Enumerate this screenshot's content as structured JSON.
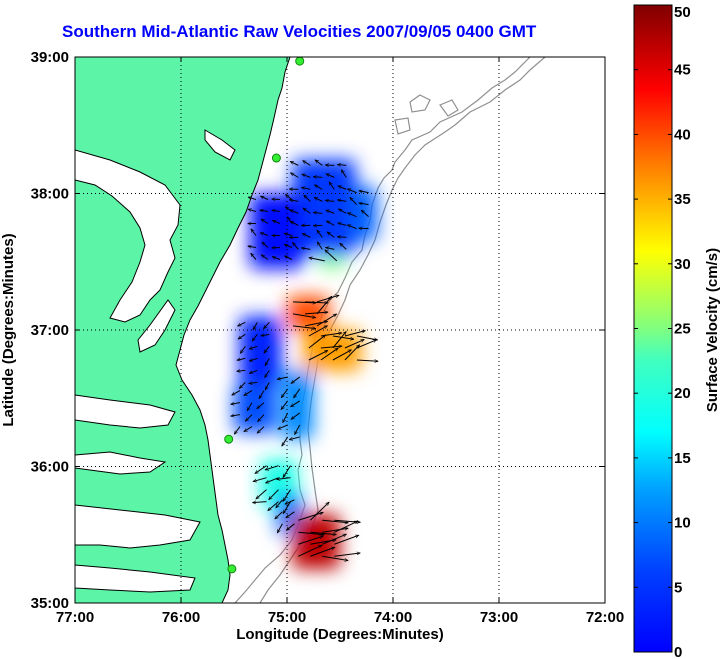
{
  "title": "Southern Mid-Atlantic Raw Velocities 2007/09/05 0400 GMT",
  "x_axis": {
    "label": "Longitude (Degrees:Minutes)",
    "ticks": [
      "77:00",
      "76:00",
      "75:00",
      "74:00",
      "73:00",
      "72:00"
    ]
  },
  "y_axis": {
    "label": "Latitude (Degrees:Minutes)",
    "ticks": [
      "39:00",
      "38:00",
      "37:00",
      "36:00",
      "35:00"
    ]
  },
  "colorbar": {
    "label": "Surface Velocity (cm/s)",
    "ticks": [
      "50",
      "45",
      "40",
      "35",
      "30",
      "25",
      "20",
      "15",
      "10",
      "5",
      "0"
    ],
    "min": 0,
    "max": 50
  },
  "colors": {
    "title": "#0000ff",
    "land": "#5cf5a8",
    "coast": "#000000",
    "bathymetry": "#909090",
    "station": "#33ee33",
    "grid": "#000000"
  },
  "chart_data": {
    "type": "heatmap",
    "title": "Southern Mid-Atlantic Raw Velocities 2007/09/05 0400 GMT",
    "xlabel": "Longitude (Degrees:Minutes)",
    "ylabel": "Latitude (Degrees:Minutes)",
    "xlim": [
      -77,
      -72
    ],
    "ylim": [
      35,
      39
    ],
    "grid": true,
    "colorbar_range": [
      0,
      50
    ],
    "regions": [
      {
        "lon": [
          -74.95,
          -74.35
        ],
        "lat": [
          37.55,
          38.25
        ],
        "speed": 9
      },
      {
        "lon": [
          -75.35,
          -74.85
        ],
        "lat": [
          37.45,
          38.0
        ],
        "speed": 7
      },
      {
        "lon": [
          -74.4,
          -74.15
        ],
        "lat": [
          37.65,
          38.05
        ],
        "speed": 11
      },
      {
        "lon": [
          -74.7,
          -74.45
        ],
        "lat": [
          37.45,
          37.55
        ],
        "speed": 25
      },
      {
        "lon": [
          -75.0,
          -74.6
        ],
        "lat": [
          37.0,
          37.25
        ],
        "speed": 40
      },
      {
        "lon": [
          -74.85,
          -74.3
        ],
        "lat": [
          36.7,
          37.0
        ],
        "speed": 36
      },
      {
        "lon": [
          -75.45,
          -75.05
        ],
        "lat": [
          36.6,
          37.1
        ],
        "speed": 8
      },
      {
        "lon": [
          -75.5,
          -75.1
        ],
        "lat": [
          36.25,
          36.6
        ],
        "speed": 10
      },
      {
        "lon": [
          -75.05,
          -74.75
        ],
        "lat": [
          36.2,
          36.7
        ],
        "speed": 13
      },
      {
        "lon": [
          -75.25,
          -74.9
        ],
        "lat": [
          35.7,
          36.05
        ],
        "speed": 20
      },
      {
        "lon": [
          -75.1,
          -74.85
        ],
        "lat": [
          35.5,
          35.8
        ],
        "speed": 12
      },
      {
        "lon": [
          -74.95,
          -74.5
        ],
        "lat": [
          35.25,
          35.65
        ],
        "speed": 47
      }
    ],
    "stations": [
      {
        "lon": -74.88,
        "lat": 38.97
      },
      {
        "lon": -75.1,
        "lat": 38.26
      },
      {
        "lon": -75.55,
        "lat": 36.2
      },
      {
        "lon": -75.52,
        "lat": 35.25
      }
    ]
  }
}
